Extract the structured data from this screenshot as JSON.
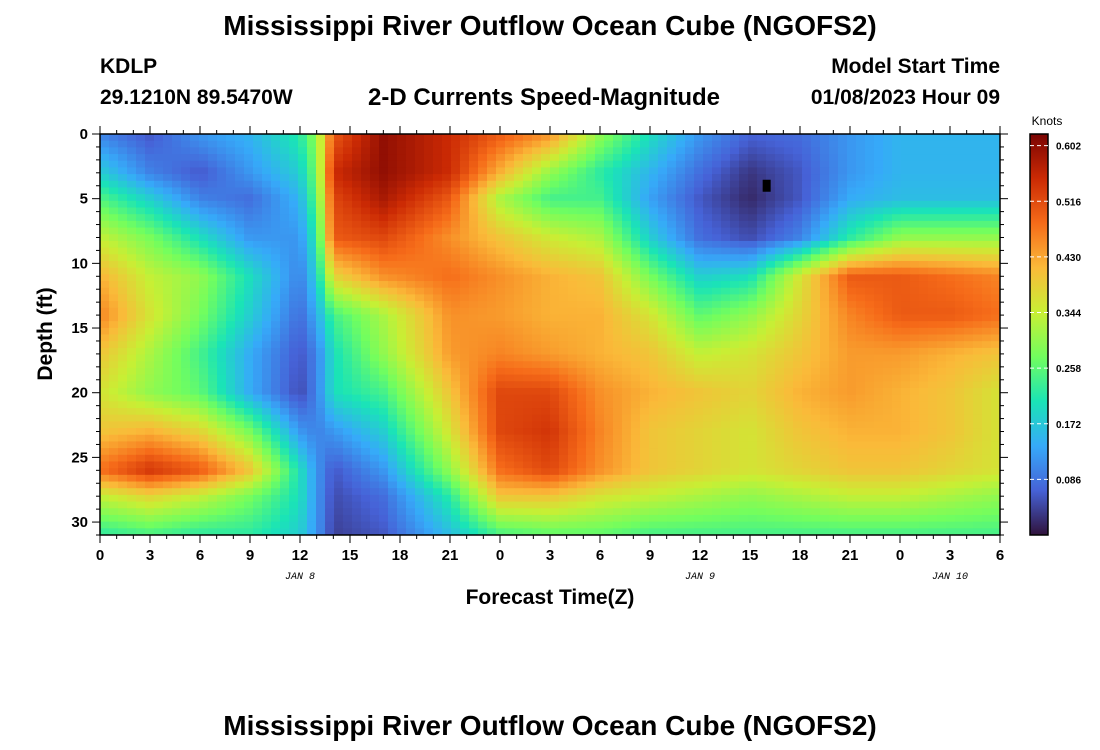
{
  "header": {
    "title": "Mississippi River Outflow Ocean Cube (NGOFS2)",
    "station": "KDLP",
    "coords": "29.1210N  89.5470W",
    "subtitle": "2-D Currents Speed-Magnitude",
    "model_start_label": "Model Start Time",
    "model_start_value": "01/08/2023 Hour 09",
    "bottom_title": "Mississippi River Outflow Ocean Cube (NGOFS2)"
  },
  "chart_data": {
    "type": "heatmap",
    "title": "2-D Currents Speed-Magnitude",
    "xlabel": "Forecast Time(Z)",
    "ylabel": "Depth (ft)",
    "x_tick_labels": [
      "0",
      "3",
      "6",
      "9",
      "12",
      "15",
      "18",
      "21",
      "0",
      "3",
      "6",
      "9",
      "12",
      "15",
      "18",
      "21",
      "0",
      "3",
      "6"
    ],
    "x_range_hours": [
      0,
      54
    ],
    "date_labels": [
      {
        "text": "JAN 8",
        "hour": 12
      },
      {
        "text": "JAN 9",
        "hour": 36
      },
      {
        "text": "JAN 10",
        "hour": 51
      }
    ],
    "y_ticks": [
      0,
      5,
      10,
      15,
      20,
      25,
      30
    ],
    "ylim": [
      0,
      31
    ],
    "y_inverted": true,
    "colorbar": {
      "unit": "Knots",
      "ticks": [
        "0.602",
        "0.516",
        "0.430",
        "0.344",
        "0.258",
        "0.172",
        "0.086"
      ],
      "range": [
        0.0,
        0.62
      ],
      "colors": [
        "#30123b",
        "#4662d7",
        "#36aaf9",
        "#1ae4b6",
        "#72fe5e",
        "#c8ef34",
        "#faba39",
        "#f66b19",
        "#cb2a04",
        "#7a0403"
      ]
    },
    "speed_grid_knots": {
      "hours": [
        0,
        3,
        6,
        9,
        12,
        13,
        14,
        17,
        21,
        24,
        27,
        30,
        33,
        36,
        39,
        42,
        45,
        48,
        51,
        54
      ],
      "depths": [
        0,
        3,
        5,
        8,
        11,
        14,
        17,
        20,
        23,
        26,
        28,
        31
      ],
      "values": [
        [
          0.1,
          0.06,
          0.12,
          0.15,
          0.22,
          0.3,
          0.5,
          0.6,
          0.55,
          0.5,
          0.45,
          0.3,
          0.2,
          0.12,
          0.07,
          0.08,
          0.12,
          0.15,
          0.15,
          0.15
        ],
        [
          0.18,
          0.1,
          0.06,
          0.12,
          0.18,
          0.28,
          0.55,
          0.6,
          0.55,
          0.42,
          0.3,
          0.22,
          0.15,
          0.08,
          0.03,
          0.06,
          0.12,
          0.15,
          0.15,
          0.15
        ],
        [
          0.25,
          0.18,
          0.1,
          0.08,
          0.15,
          0.26,
          0.52,
          0.58,
          0.5,
          0.32,
          0.24,
          0.24,
          0.13,
          0.06,
          0.02,
          0.06,
          0.14,
          0.16,
          0.16,
          0.16
        ],
        [
          0.34,
          0.28,
          0.2,
          0.12,
          0.12,
          0.22,
          0.5,
          0.52,
          0.45,
          0.4,
          0.35,
          0.32,
          0.18,
          0.08,
          0.05,
          0.1,
          0.22,
          0.3,
          0.3,
          0.3
        ],
        [
          0.42,
          0.34,
          0.3,
          0.2,
          0.1,
          0.18,
          0.38,
          0.45,
          0.48,
          0.45,
          0.42,
          0.4,
          0.28,
          0.18,
          0.2,
          0.36,
          0.5,
          0.5,
          0.48,
          0.46
        ],
        [
          0.46,
          0.36,
          0.28,
          0.18,
          0.08,
          0.14,
          0.24,
          0.32,
          0.45,
          0.44,
          0.42,
          0.42,
          0.36,
          0.26,
          0.3,
          0.38,
          0.46,
          0.5,
          0.5,
          0.48
        ],
        [
          0.4,
          0.32,
          0.24,
          0.14,
          0.06,
          0.1,
          0.2,
          0.3,
          0.44,
          0.46,
          0.44,
          0.42,
          0.4,
          0.34,
          0.36,
          0.4,
          0.44,
          0.44,
          0.42,
          0.4
        ],
        [
          0.36,
          0.3,
          0.26,
          0.14,
          0.05,
          0.1,
          0.2,
          0.24,
          0.4,
          0.52,
          0.52,
          0.45,
          0.42,
          0.4,
          0.38,
          0.42,
          0.44,
          0.42,
          0.4,
          0.36
        ],
        [
          0.4,
          0.42,
          0.38,
          0.28,
          0.12,
          0.1,
          0.12,
          0.18,
          0.36,
          0.52,
          0.54,
          0.46,
          0.4,
          0.38,
          0.36,
          0.4,
          0.42,
          0.42,
          0.4,
          0.36
        ],
        [
          0.48,
          0.54,
          0.5,
          0.4,
          0.2,
          0.12,
          0.06,
          0.12,
          0.3,
          0.48,
          0.52,
          0.45,
          0.4,
          0.38,
          0.36,
          0.38,
          0.4,
          0.4,
          0.38,
          0.36
        ],
        [
          0.34,
          0.38,
          0.34,
          0.28,
          0.2,
          0.12,
          0.05,
          0.08,
          0.22,
          0.4,
          0.4,
          0.36,
          0.34,
          0.32,
          0.3,
          0.32,
          0.34,
          0.34,
          0.32,
          0.3
        ],
        [
          0.22,
          0.24,
          0.22,
          0.22,
          0.18,
          0.12,
          0.04,
          0.06,
          0.16,
          0.24,
          0.26,
          0.26,
          0.24,
          0.24,
          0.24,
          0.24,
          0.24,
          0.24,
          0.24,
          0.24
        ]
      ]
    },
    "annotations": [
      {
        "type": "marker",
        "hour": 40,
        "depth": 4
      }
    ]
  }
}
